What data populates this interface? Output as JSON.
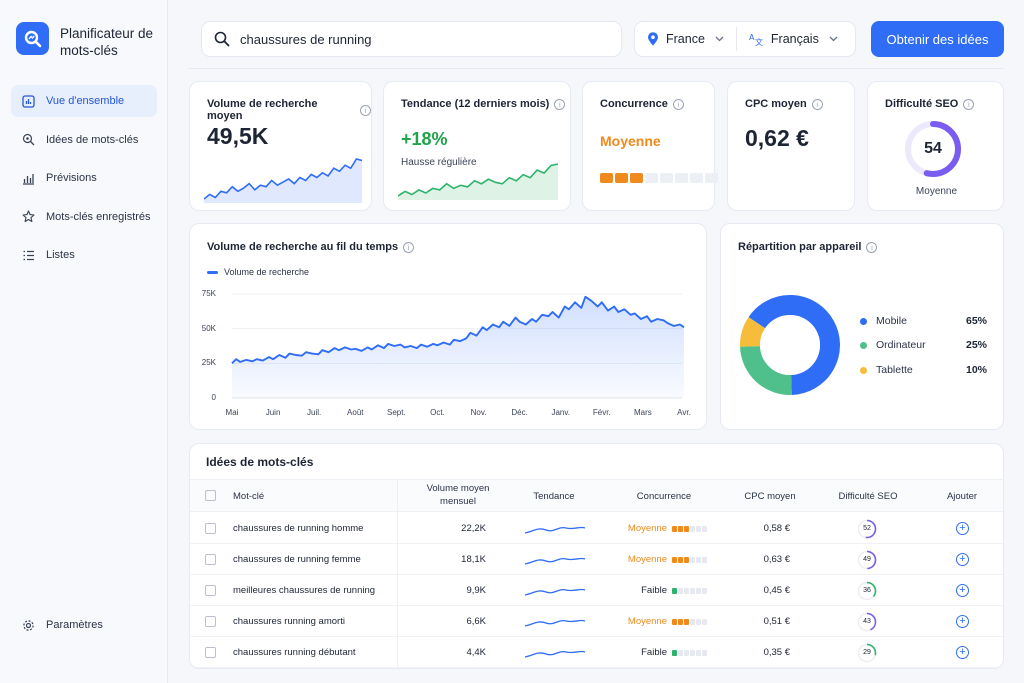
{
  "app": {
    "name": "Planificateur de mots-clés"
  },
  "sidebar": {
    "items": [
      {
        "label": "Vue d'ensemble",
        "icon": "dashboard-icon",
        "active": true
      },
      {
        "label": "Idées de mots-clés",
        "icon": "search-bulb-icon"
      },
      {
        "label": "Prévisions",
        "icon": "forecast-chart-icon"
      },
      {
        "label": "Mots-clés enregistrés",
        "icon": "star-icon"
      },
      {
        "label": "Listes",
        "icon": "list-icon"
      }
    ],
    "settings_label": "Paramètres"
  },
  "topbar": {
    "search_value": "chaussures de running",
    "country": "France",
    "language": "Français",
    "cta_label": "Obtenir des idées"
  },
  "kpis": {
    "volume": {
      "title": "Volume de recherche moyen",
      "value": "49,5K"
    },
    "trend": {
      "title": "Tendance (12 derniers mois)",
      "value": "+18%",
      "note": "Hausse régulière"
    },
    "competition": {
      "title": "Concurrence",
      "value": "Moyenne",
      "level": 3,
      "max": 8
    },
    "cpc": {
      "title": "CPC moyen",
      "value": "0,62 €"
    },
    "seo": {
      "title": "Difficulté SEO",
      "value": "54",
      "label": "Moyenne",
      "fraction": 0.54
    }
  },
  "volume_chart": {
    "title": "Volume de recherche au fil du temps",
    "legend": "Volume de recherche"
  },
  "device": {
    "title": "Répartition par appareil",
    "items": [
      {
        "label": "Mobile",
        "value": "65%"
      },
      {
        "label": "Ordinateur",
        "value": "25%"
      },
      {
        "label": "Tablette",
        "value": "10%"
      }
    ]
  },
  "chart_data": {
    "type": "line",
    "title": "Volume de recherche au fil du temps",
    "series_name": "Volume de recherche",
    "x_ticks": [
      "Mai",
      "Juin",
      "Juil.",
      "Août",
      "Sept.",
      "Oct.",
      "Nov.",
      "Déc.",
      "Janv.",
      "Févr.",
      "Mars",
      "Avr."
    ],
    "y_ticks": [
      "0",
      "25K",
      "50K",
      "75K"
    ],
    "ylim": [
      0,
      75000
    ],
    "x": [
      0,
      0.1,
      0.2,
      0.35,
      0.5,
      0.6,
      0.75,
      0.9,
      1,
      1.15,
      1.3,
      1.4,
      1.55,
      1.7,
      1.8,
      1.95,
      2.1,
      2.2,
      2.35,
      2.5,
      2.6,
      2.75,
      2.9,
      3,
      3.15,
      3.3,
      3.4,
      3.55,
      3.7,
      3.8,
      3.95,
      4.1,
      4.2,
      4.35,
      4.5,
      4.6,
      4.75,
      4.9,
      5,
      5.15,
      5.3,
      5.4,
      5.55,
      5.7,
      5.8,
      5.95,
      6.1,
      6.2,
      6.35,
      6.5,
      6.6,
      6.75,
      6.9,
      7,
      7.15,
      7.3,
      7.4,
      7.55,
      7.7,
      7.8,
      7.95,
      8.1,
      8.2,
      8.35,
      8.5,
      8.6,
      8.75,
      8.9,
      9,
      9.15,
      9.3,
      9.4,
      9.55,
      9.7,
      9.8,
      9.95,
      10.1,
      10.2,
      10.35,
      10.5,
      10.6,
      10.75,
      10.9,
      11
    ],
    "y": [
      25000,
      28000,
      26000,
      27500,
      26500,
      28000,
      27000,
      29500,
      28000,
      31000,
      29000,
      32000,
      31000,
      30500,
      33000,
      32000,
      31500,
      34500,
      33000,
      36000,
      34500,
      36500,
      35000,
      35500,
      34000,
      36500,
      35000,
      38000,
      36000,
      39000,
      37500,
      38500,
      36500,
      37500,
      36000,
      38500,
      37000,
      39000,
      38000,
      40000,
      38500,
      42000,
      41000,
      43000,
      47000,
      45000,
      51000,
      49000,
      53000,
      51000,
      55000,
      52000,
      58000,
      55000,
      53000,
      57000,
      55000,
      60000,
      59000,
      62000,
      58000,
      66000,
      64000,
      69000,
      65000,
      73000,
      70000,
      66000,
      69000,
      63000,
      66000,
      62000,
      64000,
      60000,
      61000,
      57000,
      59000,
      55000,
      57000,
      56000,
      54000,
      52000,
      53000,
      51000
    ]
  },
  "device_chart": {
    "type": "pie",
    "labels": [
      "Mobile",
      "Ordinateur",
      "Tablette"
    ],
    "values": [
      65,
      25,
      10
    ]
  },
  "table": {
    "title": "Idées de mots-clés",
    "headers": {
      "keyword": "Mot-clé",
      "volume": "Volume moyen mensuel",
      "trend": "Tendance",
      "competition": "Concurrence",
      "cpc": "CPC moyen",
      "seo": "Difficulté SEO",
      "add": "Ajouter"
    },
    "rows": [
      {
        "keyword": "chaussures de running homme",
        "volume": "22,2K",
        "competition": "Moyenne",
        "comp_level": 3,
        "cpc": "0,58 €",
        "seo": "52",
        "seo_fraction": 0.52
      },
      {
        "keyword": "chaussures de running femme",
        "volume": "18,1K",
        "competition": "Moyenne",
        "comp_level": 3,
        "cpc": "0,63 €",
        "seo": "49",
        "seo_fraction": 0.49
      },
      {
        "keyword": "meilleures chaussures de running",
        "volume": "9,9K",
        "competition": "Faible",
        "comp_level": 1,
        "cpc": "0,45 €",
        "seo": "36",
        "seo_fraction": 0.36
      },
      {
        "keyword": "chaussures running amorti",
        "volume": "6,6K",
        "competition": "Moyenne",
        "comp_level": 3,
        "cpc": "0,51 €",
        "seo": "43",
        "seo_fraction": 0.43
      },
      {
        "keyword": "chaussures running débutant",
        "volume": "4,4K",
        "competition": "Faible",
        "comp_level": 1,
        "cpc": "0,35 €",
        "seo": "29",
        "seo_fraction": 0.29
      }
    ]
  },
  "colors": {
    "accent": "#2f6df6",
    "positive": "#20a34a",
    "medium": "#f08a1c",
    "low": "#2db36b",
    "mobile": "#2f6df6",
    "desktop": "#4fbf8b",
    "tablet": "#f5bd3a",
    "seo_ring": "#7a5cf0"
  }
}
